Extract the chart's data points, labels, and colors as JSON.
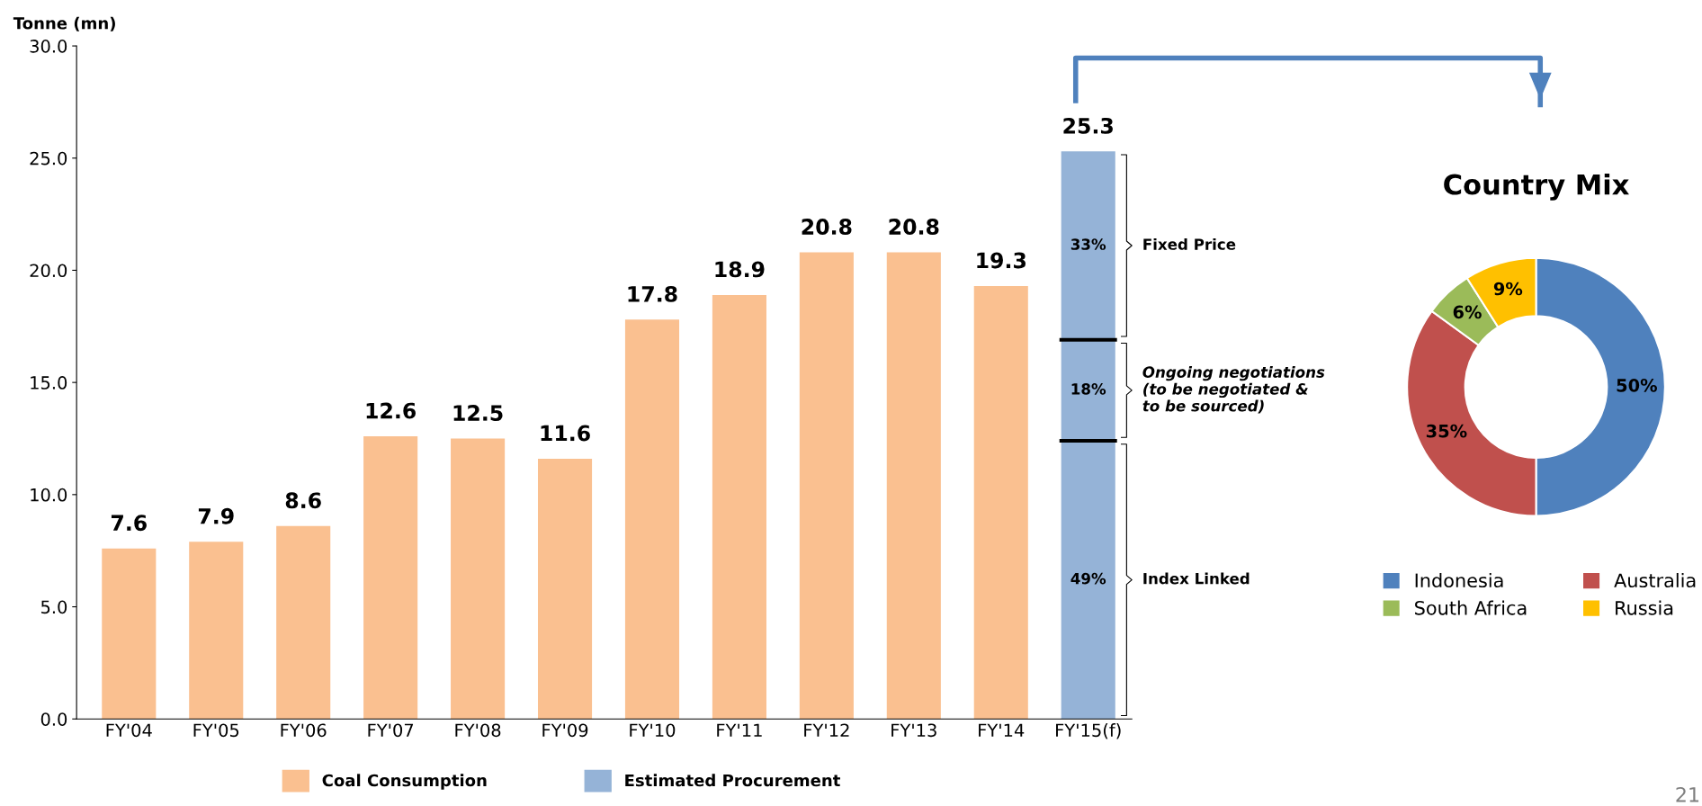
{
  "chart_data": [
    {
      "type": "bar",
      "stacked": true,
      "ylabel": "Tonne (mn)",
      "categories": [
        "FY'04",
        "FY'05",
        "FY'06",
        "FY'07",
        "FY'08",
        "FY'09",
        "FY'10",
        "FY'11",
        "FY'12",
        "FY'13",
        "FY'14",
        "FY'15(f)"
      ],
      "series": [
        {
          "name": "Coal Consumption",
          "color": "#fac090",
          "values": [
            7.6,
            7.9,
            8.6,
            12.6,
            12.5,
            11.6,
            17.8,
            18.9,
            20.8,
            20.8,
            19.3,
            null
          ]
        },
        {
          "name": "Estimated Procurement",
          "color": "#95b3d7",
          "values": [
            null,
            null,
            null,
            null,
            null,
            null,
            null,
            null,
            null,
            null,
            null,
            12.4
          ]
        },
        {
          "color": "#95b3d7",
          "values": [
            null,
            null,
            null,
            null,
            null,
            null,
            null,
            null,
            null,
            null,
            null,
            4.5
          ]
        },
        {
          "color": "#95b3d7",
          "values": [
            null,
            null,
            null,
            null,
            null,
            null,
            null,
            null,
            null,
            null,
            null,
            8.4
          ]
        }
      ],
      "totals": [
        "7.6",
        "7.9",
        "8.6",
        "12.6",
        "12.5",
        "11.6",
        "17.8",
        "18.9",
        "20.8",
        "20.8",
        "19.3",
        "25.3"
      ],
      "ylim": [
        0,
        30
      ],
      "yticks": [
        {
          "value": 0,
          "label": "0.0"
        },
        {
          "value": 5,
          "label": "5.0"
        },
        {
          "value": 10,
          "label": "10.0"
        },
        {
          "value": 15,
          "label": "15.0"
        },
        {
          "value": 20,
          "label": "20.0"
        },
        {
          "value": 25,
          "label": "25.0"
        },
        {
          "value": 30,
          "label": "30.0"
        }
      ],
      "annotations": [
        "49%",
        "18%",
        "33%",
        "Index Linked",
        "Ongoing negotiations\n(to be negotiated &\nto be sourced)",
        "Fixed Price"
      ],
      "legend": "bottom"
    },
    {
      "type": "donut",
      "title": "Country Mix",
      "categories": [
        "Indonesia",
        "Australia",
        "South Africa",
        "Russia"
      ],
      "values": [
        50,
        35,
        6,
        9
      ],
      "colors": [
        "#4f81bd",
        "#c0504d",
        "#9bbb59",
        "#ffc000"
      ],
      "value_labels": [
        "50%",
        "35%",
        "6%",
        "9%"
      ],
      "legend": "bottom",
      "annotations": [
        "21"
      ]
    }
  ]
}
